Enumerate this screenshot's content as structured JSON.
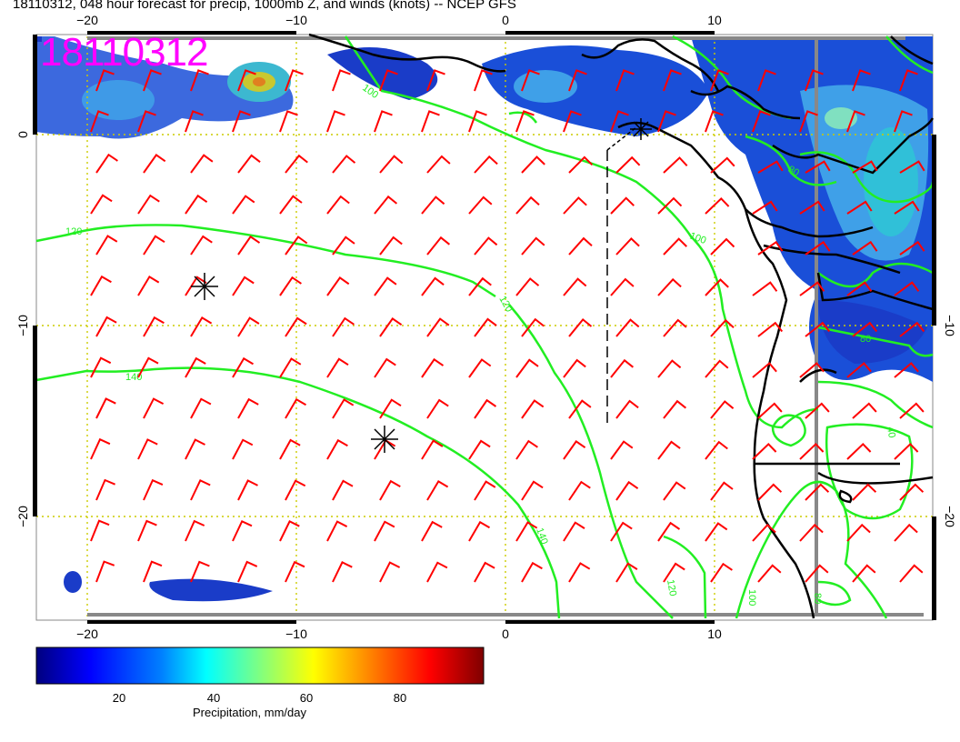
{
  "title": "18110312, 048 hour forecast for precip, 1000mb Z, and winds (knots) -- NCEP GFS",
  "stamp": "18110312",
  "axes": {
    "top_lon_ticks": [
      "−20",
      "−10",
      "0",
      "10"
    ],
    "bottom_lon_ticks": [
      "−20",
      "−10",
      "0",
      "10"
    ],
    "left_lat_ticks": [
      "0",
      "−10",
      "−20"
    ],
    "right_lat_ticks": [
      "−10",
      "−20"
    ]
  },
  "contour_labels": [
    "100",
    "120",
    "120",
    "140",
    "140",
    "120",
    "100",
    "100",
    "80",
    "80",
    "80",
    "40"
  ],
  "colorbar": {
    "label": "Precipitation, mm/day",
    "ticks": [
      "20",
      "40",
      "60",
      "80"
    ],
    "colors": [
      "#00007f",
      "#0000ff",
      "#0080ff",
      "#00ffff",
      "#80ff80",
      "#ffff00",
      "#ff8000",
      "#ff0000",
      "#7f0000"
    ]
  },
  "colors": {
    "contours": "#22ee22",
    "wind_barbs": "#ff0000",
    "grid": "#cccc00",
    "coastline": "#000000",
    "stamp": "#ff00ff"
  }
}
